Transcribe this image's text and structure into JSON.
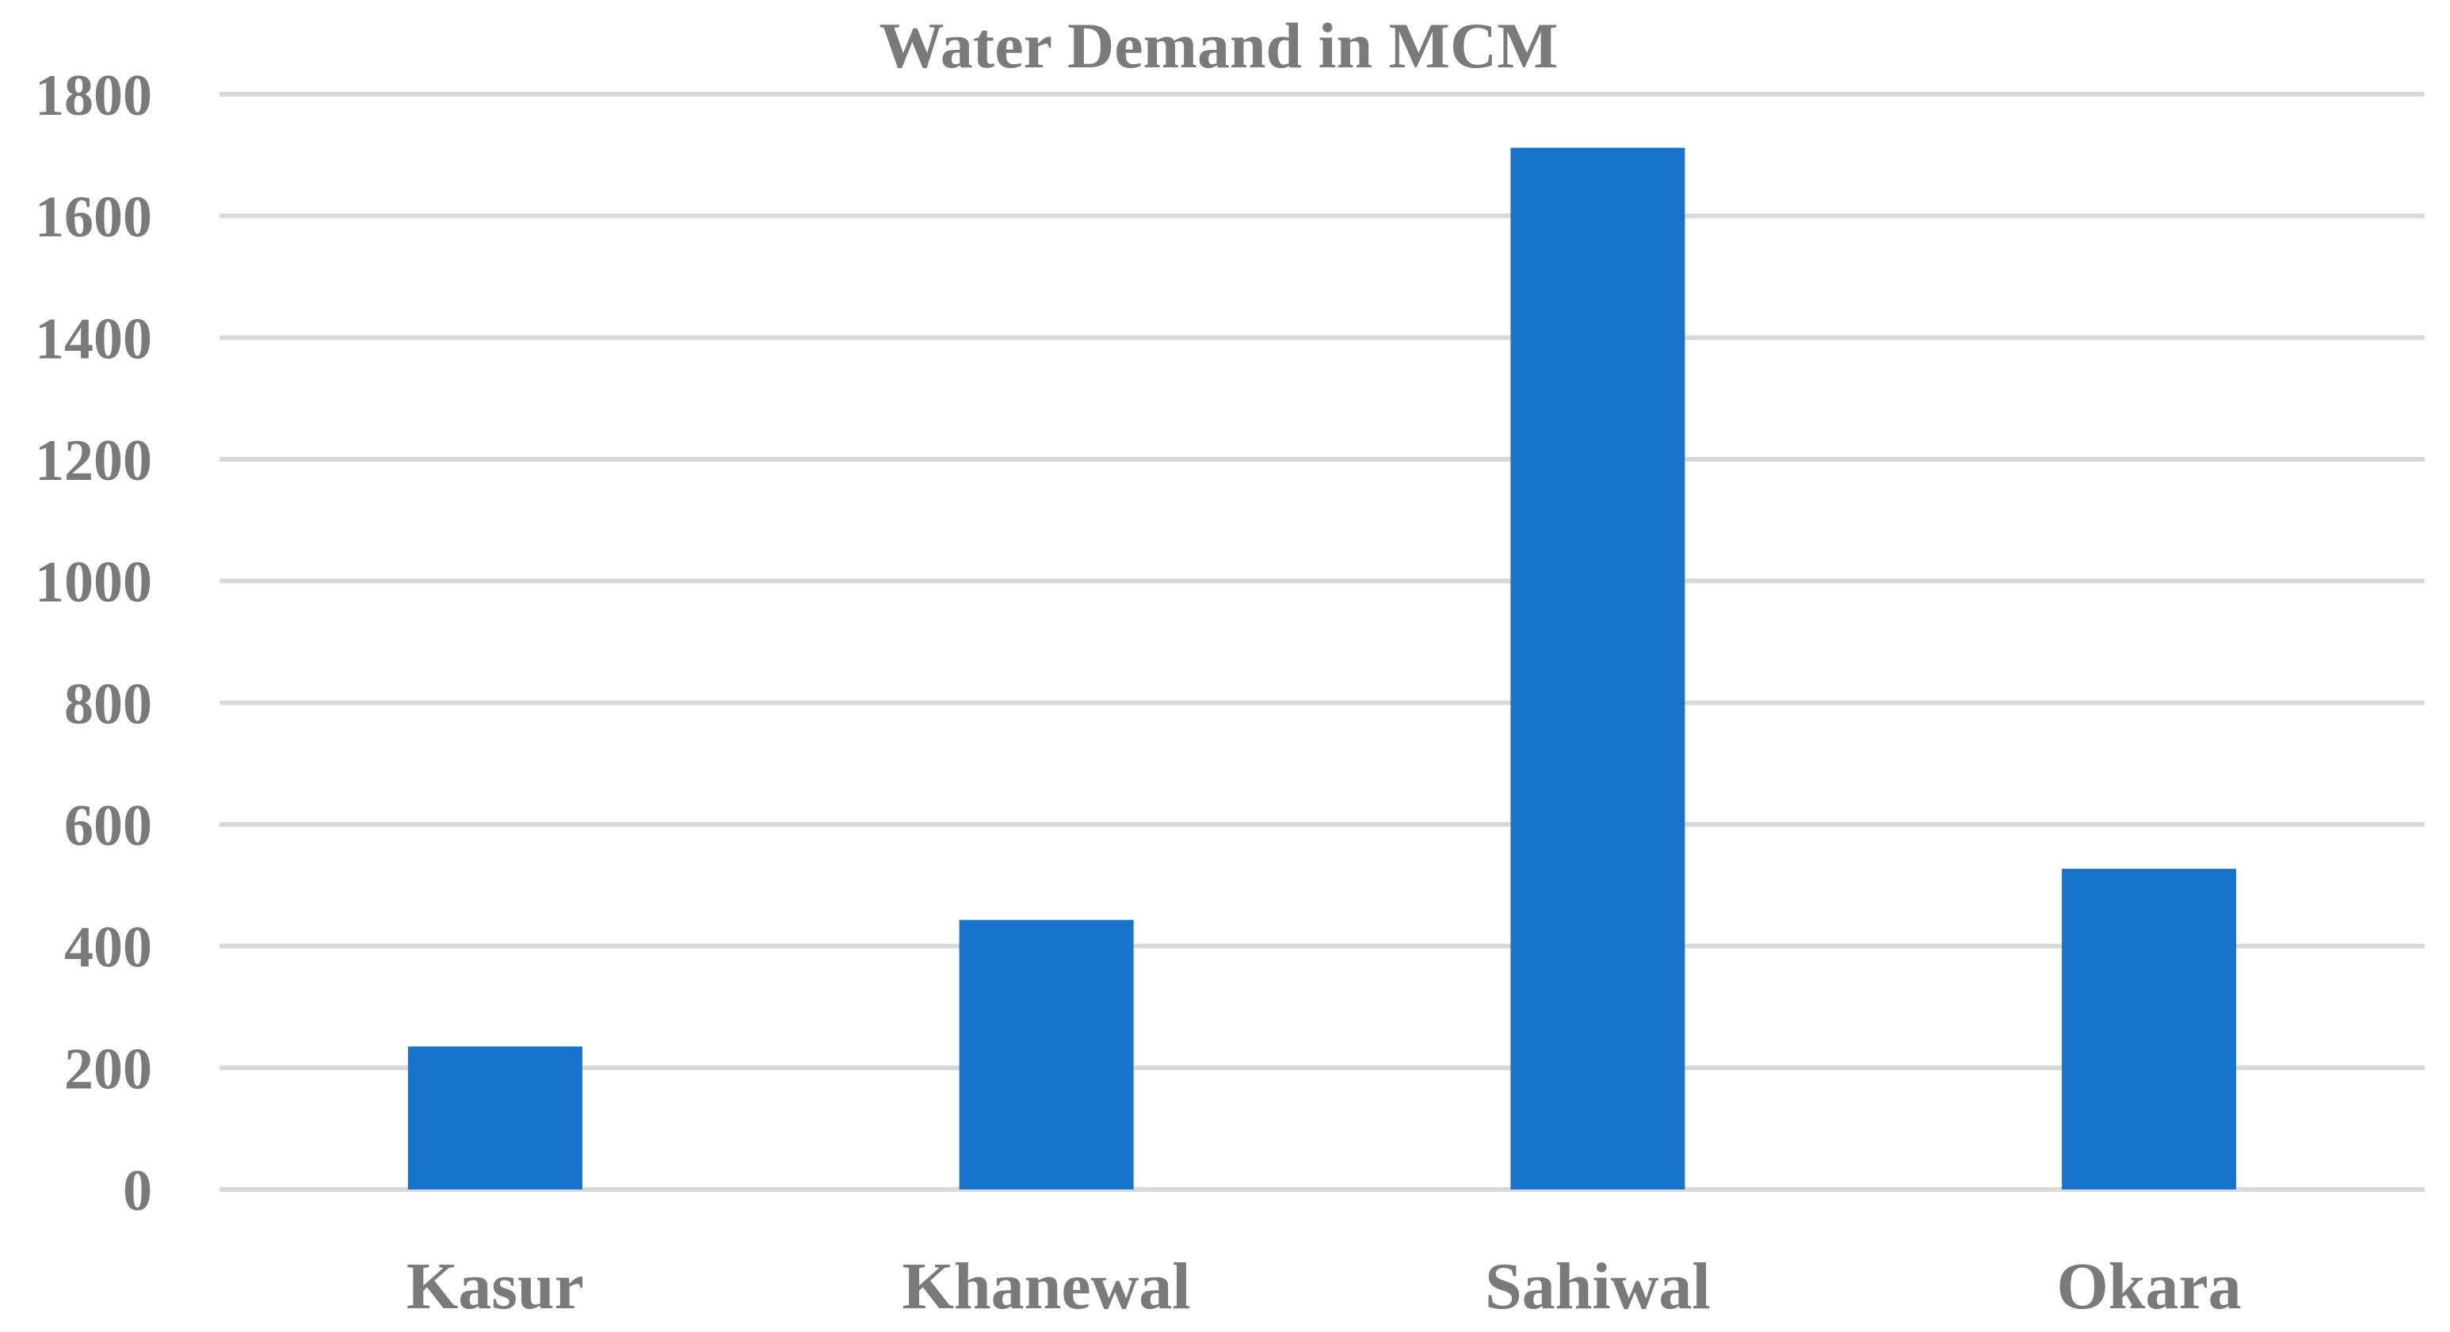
{
  "chart_data": {
    "type": "bar",
    "title": "Water Demand in MCM",
    "xlabel": "",
    "ylabel": "",
    "categories": [
      "Kasur",
      "Khanewal",
      "Sahiwal",
      "Okara"
    ],
    "values": [
      235,
      443,
      1712,
      527
    ],
    "ylim": [
      0,
      1800
    ],
    "y_ticks": [
      0,
      200,
      400,
      600,
      800,
      1000,
      1200,
      1400,
      1600,
      1800
    ],
    "grid": true,
    "legend": "none",
    "colors": {
      "bar": "#1873CC",
      "grid": "#d9d9d9",
      "text": "#7a7a7a"
    }
  }
}
